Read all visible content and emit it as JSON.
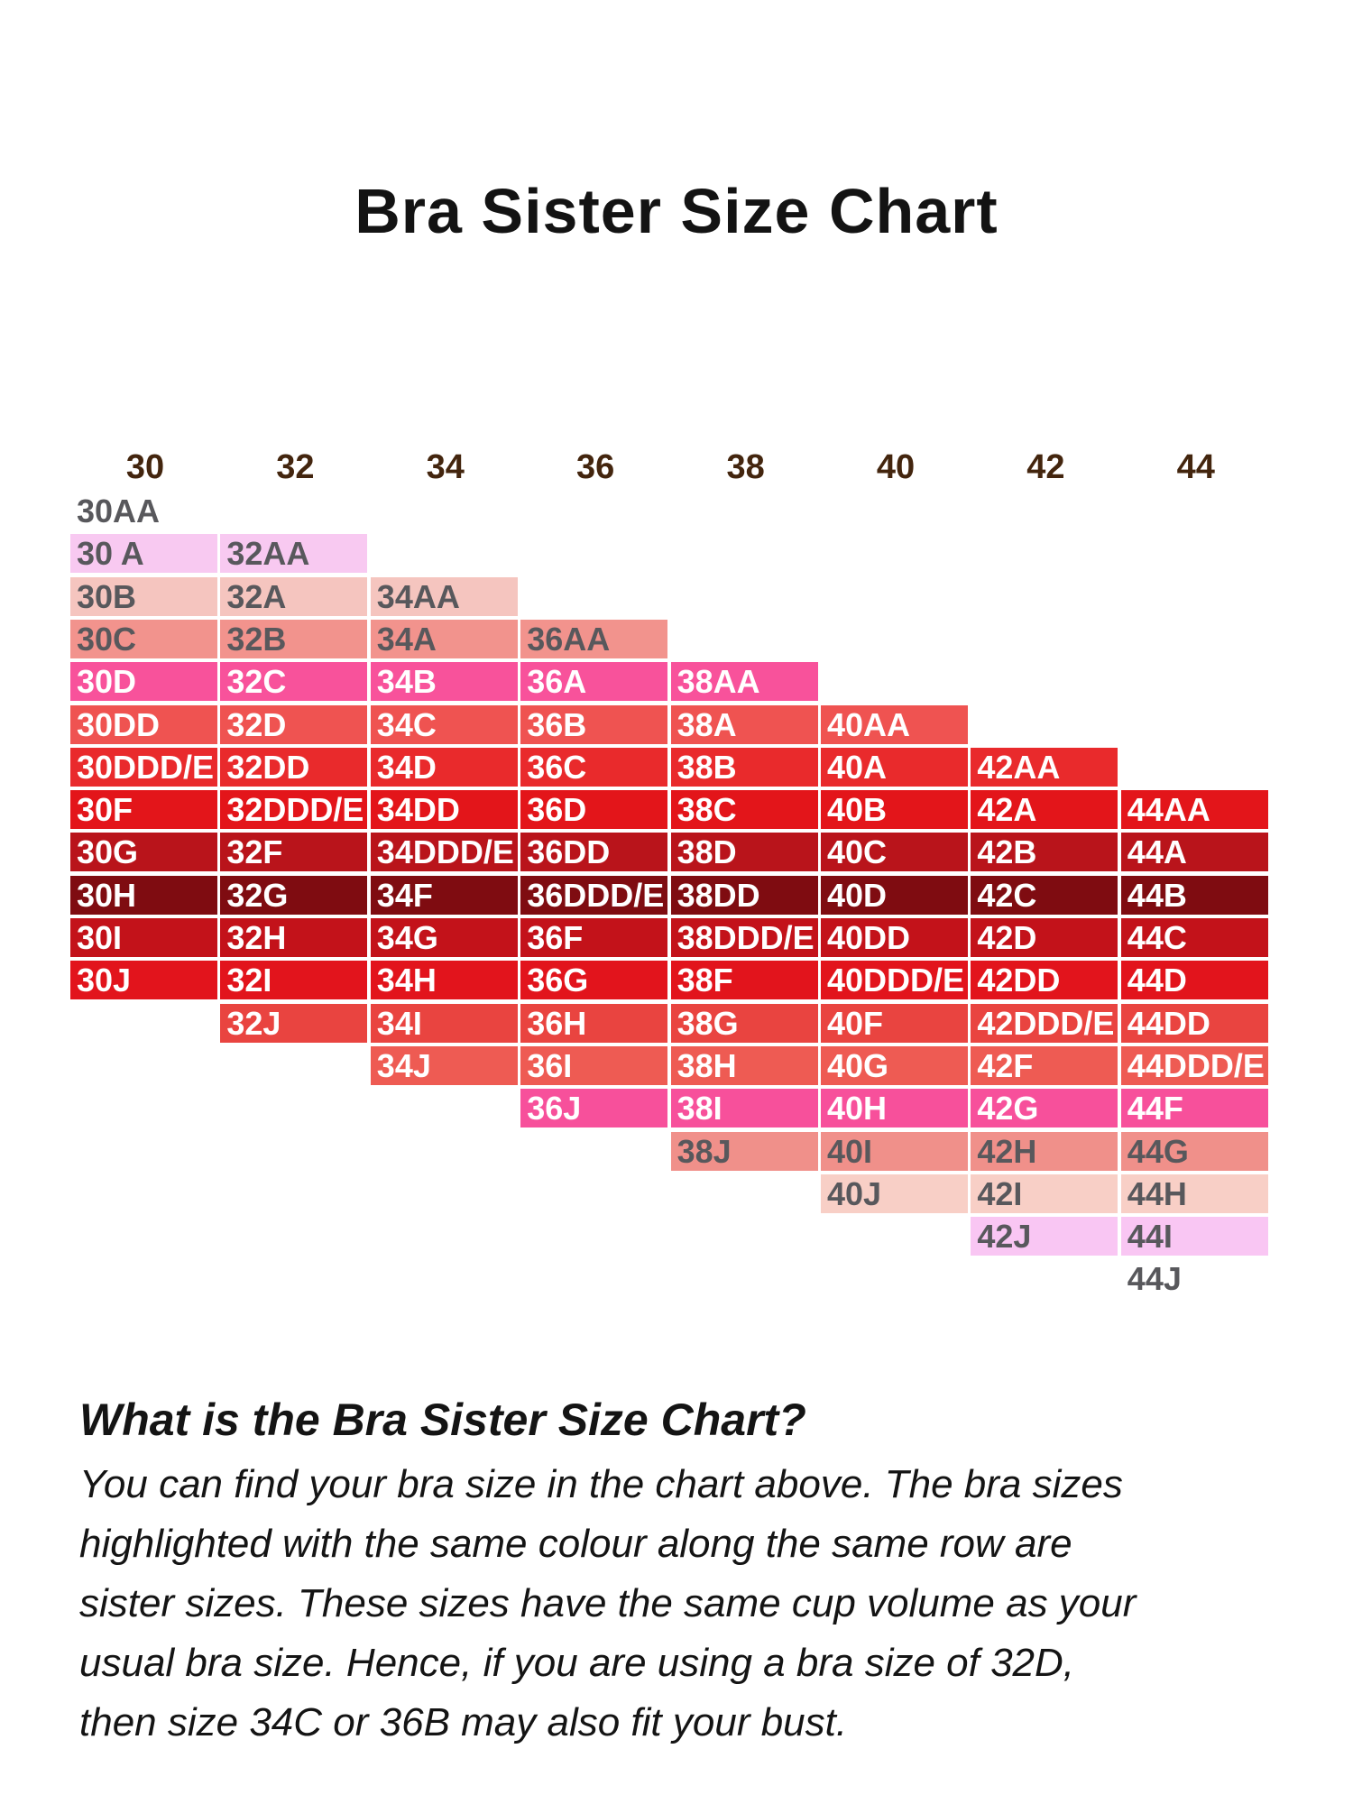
{
  "title": "Bra Sister Size Chart",
  "chart_data": {
    "type": "table",
    "title": "Bra Sister Size Chart",
    "band_headers": [
      "30",
      "32",
      "34",
      "36",
      "38",
      "40",
      "42",
      "44"
    ],
    "cups_order": [
      "AA",
      "A",
      "B",
      "C",
      "D",
      "DD",
      "DDD/E",
      "F",
      "G",
      "H",
      "I",
      "J"
    ],
    "header_text_color": "#43250e",
    "gray_text_color": "#58585c",
    "white_text_color": "#ffffff",
    "grid_gap_color": "#ffffff",
    "rows": [
      {
        "bg": null,
        "text": "gray",
        "cells": [
          {
            "col": 0,
            "label": "30AA"
          }
        ]
      },
      {
        "bg": "#f8c9f1",
        "text": "gray",
        "cells": [
          {
            "col": 0,
            "label": "30 A"
          },
          {
            "col": 1,
            "label": "32AA"
          }
        ]
      },
      {
        "bg": "#f5c5bf",
        "text": "gray",
        "cells": [
          {
            "col": 0,
            "label": "30B"
          },
          {
            "col": 1,
            "label": "32A"
          },
          {
            "col": 2,
            "label": "34AA"
          }
        ]
      },
      {
        "bg": "#f2938d",
        "text": "gray",
        "cells": [
          {
            "col": 0,
            "label": "30C"
          },
          {
            "col": 1,
            "label": "32B"
          },
          {
            "col": 2,
            "label": "34A"
          },
          {
            "col": 3,
            "label": "36AA"
          }
        ]
      },
      {
        "bg": "#f8529b",
        "text": "white",
        "cells": [
          {
            "col": 0,
            "label": "30D"
          },
          {
            "col": 1,
            "label": "32C"
          },
          {
            "col": 2,
            "label": "34B"
          },
          {
            "col": 3,
            "label": "36A"
          },
          {
            "col": 4,
            "label": "38AA"
          }
        ]
      },
      {
        "bg": "#ef5351",
        "text": "white",
        "cells": [
          {
            "col": 0,
            "label": "30DD"
          },
          {
            "col": 1,
            "label": "32D"
          },
          {
            "col": 2,
            "label": "34C"
          },
          {
            "col": 3,
            "label": "36B"
          },
          {
            "col": 4,
            "label": "38A"
          },
          {
            "col": 5,
            "label": "40AA"
          }
        ]
      },
      {
        "bg": "#e92a2c",
        "text": "white",
        "cells": [
          {
            "col": 0,
            "label": "30DDD/E"
          },
          {
            "col": 1,
            "label": "32DD"
          },
          {
            "col": 2,
            "label": "34D"
          },
          {
            "col": 3,
            "label": "36C"
          },
          {
            "col": 4,
            "label": "38B"
          },
          {
            "col": 5,
            "label": "40A"
          },
          {
            "col": 6,
            "label": "42AA"
          }
        ]
      },
      {
        "bg": "#e3151a",
        "text": "white",
        "cells": [
          {
            "col": 0,
            "label": "30F"
          },
          {
            "col": 1,
            "label": "32DDD/E"
          },
          {
            "col": 2,
            "label": "34DD"
          },
          {
            "col": 3,
            "label": "36D"
          },
          {
            "col": 4,
            "label": "38C"
          },
          {
            "col": 5,
            "label": "40B"
          },
          {
            "col": 6,
            "label": "42A"
          },
          {
            "col": 7,
            "label": "44AA"
          }
        ]
      },
      {
        "bg": "#b9141b",
        "text": "white",
        "cells": [
          {
            "col": 0,
            "label": "30G"
          },
          {
            "col": 1,
            "label": "32F"
          },
          {
            "col": 2,
            "label": "34DDD/E"
          },
          {
            "col": 3,
            "label": "36DD"
          },
          {
            "col": 4,
            "label": "38D"
          },
          {
            "col": 5,
            "label": "40C"
          },
          {
            "col": 6,
            "label": "42B"
          },
          {
            "col": 7,
            "label": "44A"
          }
        ]
      },
      {
        "bg": "#7f0c11",
        "text": "white",
        "cells": [
          {
            "col": 0,
            "label": "30H"
          },
          {
            "col": 1,
            "label": "32G"
          },
          {
            "col": 2,
            "label": "34F"
          },
          {
            "col": 3,
            "label": "36DDD/E"
          },
          {
            "col": 4,
            "label": "38DD"
          },
          {
            "col": 5,
            "label": "40D"
          },
          {
            "col": 6,
            "label": "42C"
          },
          {
            "col": 7,
            "label": "44B"
          }
        ]
      },
      {
        "bg": "#c3121a",
        "text": "white",
        "cells": [
          {
            "col": 0,
            "label": "30I"
          },
          {
            "col": 1,
            "label": "32H"
          },
          {
            "col": 2,
            "label": "34G"
          },
          {
            "col": 3,
            "label": "36F"
          },
          {
            "col": 4,
            "label": "38DDD/E"
          },
          {
            "col": 5,
            "label": "40DD"
          },
          {
            "col": 6,
            "label": "42D"
          },
          {
            "col": 7,
            "label": "44C"
          }
        ]
      },
      {
        "bg": "#e2141c",
        "text": "white",
        "cells": [
          {
            "col": 0,
            "label": "30J"
          },
          {
            "col": 1,
            "label": "32I"
          },
          {
            "col": 2,
            "label": "34H"
          },
          {
            "col": 3,
            "label": "36G"
          },
          {
            "col": 4,
            "label": "38F"
          },
          {
            "col": 5,
            "label": "40DDD/E"
          },
          {
            "col": 6,
            "label": "42DD"
          },
          {
            "col": 7,
            "label": "44D"
          }
        ]
      },
      {
        "bg": "#e94440",
        "text": "white",
        "cells": [
          {
            "col": 1,
            "label": "32J"
          },
          {
            "col": 2,
            "label": "34I"
          },
          {
            "col": 3,
            "label": "36H"
          },
          {
            "col": 4,
            "label": "38G"
          },
          {
            "col": 5,
            "label": "40F"
          },
          {
            "col": 6,
            "label": "42DDD/E"
          },
          {
            "col": 7,
            "label": "44DD"
          }
        ]
      },
      {
        "bg": "#ee5b53",
        "text": "white",
        "cells": [
          {
            "col": 2,
            "label": "34J"
          },
          {
            "col": 3,
            "label": "36I"
          },
          {
            "col": 4,
            "label": "38H"
          },
          {
            "col": 5,
            "label": "40G"
          },
          {
            "col": 6,
            "label": "42F"
          },
          {
            "col": 7,
            "label": "44DDD/E"
          }
        ]
      },
      {
        "bg": "#f7509b",
        "text": "white",
        "cells": [
          {
            "col": 3,
            "label": "36J"
          },
          {
            "col": 4,
            "label": "38I"
          },
          {
            "col": 5,
            "label": "40H"
          },
          {
            "col": 6,
            "label": "42G"
          },
          {
            "col": 7,
            "label": "44F"
          }
        ]
      },
      {
        "bg": "#f0908a",
        "text": "gray",
        "cells": [
          {
            "col": 4,
            "label": "38J"
          },
          {
            "col": 5,
            "label": "40I"
          },
          {
            "col": 6,
            "label": "42H"
          },
          {
            "col": 7,
            "label": "44G"
          }
        ]
      },
      {
        "bg": "#f8cfc6",
        "text": "gray",
        "cells": [
          {
            "col": 5,
            "label": "40J"
          },
          {
            "col": 6,
            "label": "42I"
          },
          {
            "col": 7,
            "label": "44H"
          }
        ]
      },
      {
        "bg": "#f9c6f3",
        "text": "gray",
        "cells": [
          {
            "col": 6,
            "label": "42J"
          },
          {
            "col": 7,
            "label": "44I"
          }
        ]
      },
      {
        "bg": null,
        "text": "gray",
        "cells": [
          {
            "col": 7,
            "label": "44J"
          }
        ]
      }
    ]
  },
  "footer": {
    "heading": "What is the Bra Sister Size Chart?",
    "lines": [
      "You can find your bra size in the chart above. The bra sizes",
      "highlighted with the same colour along the same row are",
      "sister sizes. These sizes have the same cup volume as your",
      "usual bra size. Hence, if you are using a bra size of 32D,",
      "then size 34C or 36B may also fit your bust."
    ]
  }
}
